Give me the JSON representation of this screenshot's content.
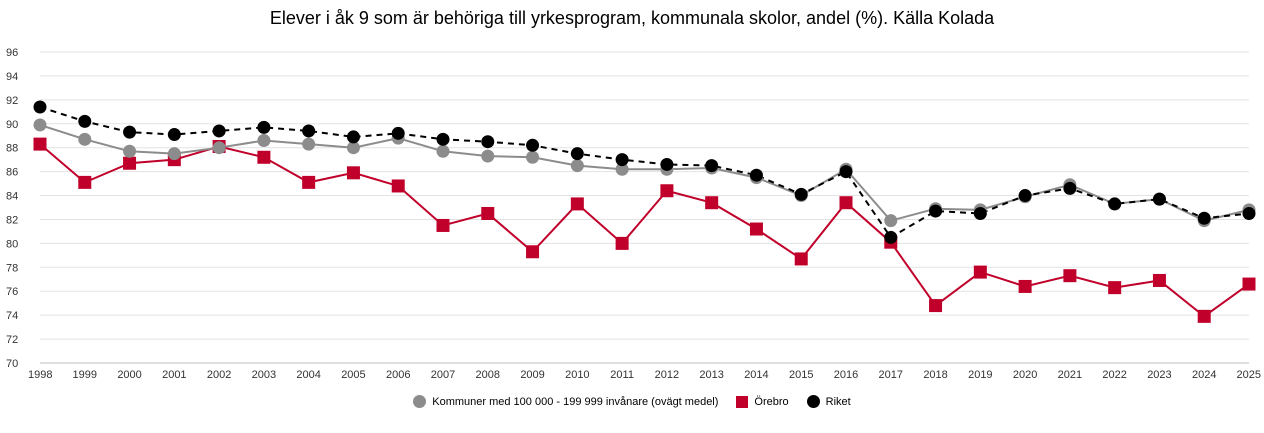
{
  "chart_data": {
    "type": "line",
    "title": "Elever i åk 9 som är behöriga till yrkesprogram, kommunala skolor, andel (%). Källa Kolada",
    "x": [
      "1998",
      "1999",
      "2000",
      "2001",
      "2002",
      "2003",
      "2004",
      "2005",
      "2006",
      "2007",
      "2008",
      "2009",
      "2010",
      "2011",
      "2012",
      "2013",
      "2014",
      "2015",
      "2016",
      "2017",
      "2018",
      "2019",
      "2020",
      "2021",
      "2022",
      "2023",
      "2024",
      "2025"
    ],
    "yticks": [
      70,
      72,
      74,
      76,
      78,
      80,
      82,
      84,
      86,
      88,
      90,
      92,
      94,
      96
    ],
    "ylim": [
      70,
      96
    ],
    "grid": true,
    "legend_position": "bottom",
    "series": [
      {
        "name": "Kommuner med 100 000 - 199 999 invånare (ovägt medel)",
        "color": "#8c8c8c",
        "marker": "circle",
        "line": "solid",
        "values": [
          89.9,
          88.7,
          87.7,
          87.5,
          88.0,
          88.6,
          88.3,
          88.0,
          88.8,
          87.7,
          87.3,
          87.2,
          86.5,
          86.2,
          86.2,
          86.3,
          85.5,
          84.0,
          86.2,
          81.9,
          82.9,
          82.8,
          83.9,
          84.9,
          83.3,
          83.7,
          81.9,
          82.8
        ]
      },
      {
        "name": "Örebro",
        "color": "#c0002a",
        "marker": "square",
        "line": "solid",
        "values": [
          88.3,
          85.1,
          86.7,
          87.0,
          88.1,
          87.2,
          85.1,
          85.9,
          84.8,
          81.5,
          82.5,
          79.3,
          83.3,
          80.0,
          84.4,
          83.4,
          81.2,
          78.7,
          83.4,
          80.1,
          74.8,
          77.6,
          76.4,
          77.3,
          76.3,
          76.9,
          73.9,
          76.6
        ]
      },
      {
        "name": "Riket",
        "color": "#000000",
        "marker": "circle",
        "line": "dashed",
        "values": [
          91.4,
          90.2,
          89.3,
          89.1,
          89.4,
          89.7,
          89.4,
          88.9,
          89.2,
          88.7,
          88.5,
          88.2,
          87.5,
          87.0,
          86.6,
          86.5,
          85.7,
          84.1,
          86.0,
          80.5,
          82.7,
          82.5,
          84.0,
          84.6,
          83.3,
          83.7,
          82.1,
          82.5
        ]
      }
    ]
  }
}
